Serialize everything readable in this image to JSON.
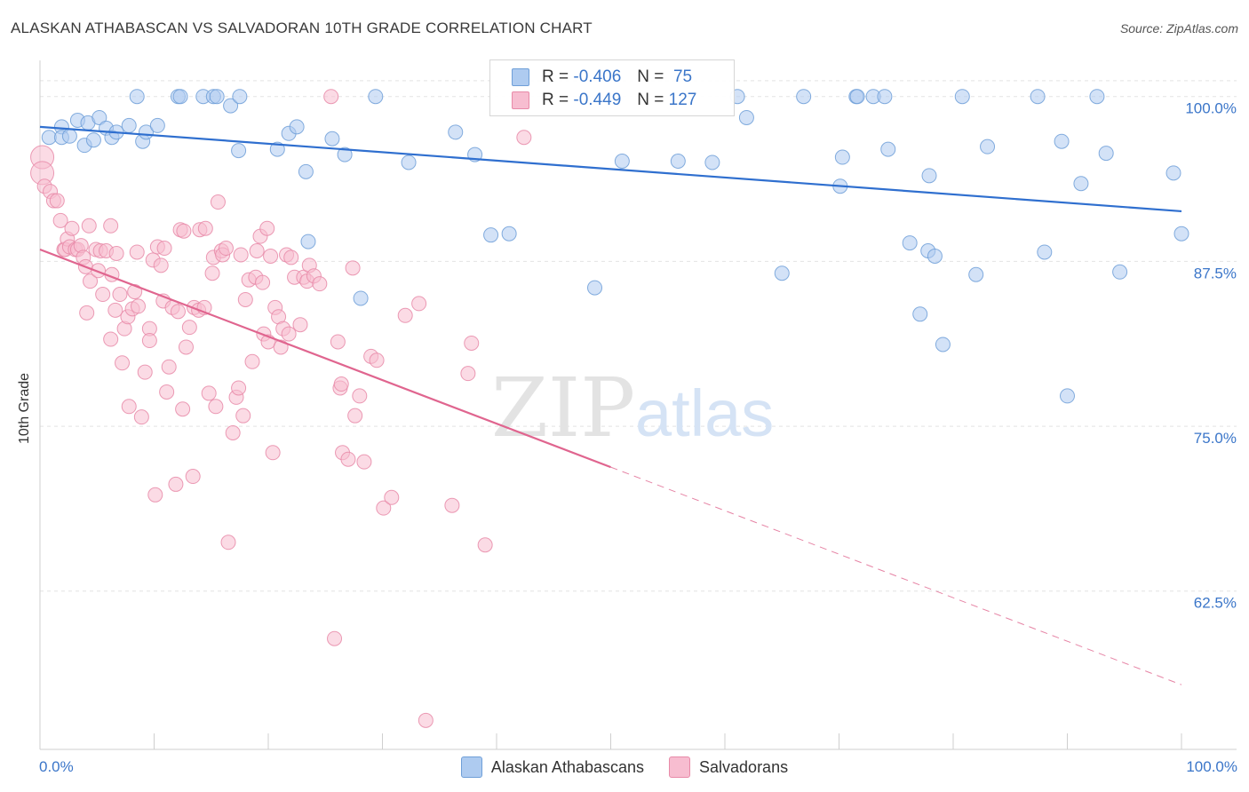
{
  "header": {
    "title": "ALASKAN ATHABASCAN VS SALVADORAN 10TH GRADE CORRELATION CHART",
    "source": "Source: ZipAtlas.com"
  },
  "watermark": {
    "zip": "ZIP",
    "atlas": "atlas"
  },
  "legend_stats": {
    "r_label": "R =",
    "n_label": "N =",
    "rows": [
      {
        "r": "-0.406",
        "n": "75",
        "color": "#aecbf0",
        "border": "#6f9fd8"
      },
      {
        "r": "-0.449",
        "n": "127",
        "color": "#f7bdd0",
        "border": "#e88aa8"
      }
    ]
  },
  "chart_data": {
    "type": "scatter",
    "title": "ALASKAN ATHABASCAN VS SALVADORAN 10TH GRADE CORRELATION CHART",
    "xlabel": "",
    "ylabel": "10th Grade",
    "xlim": [
      0,
      100
    ],
    "ylim": [
      50.5,
      102
    ],
    "x_tick_labels": [
      "0.0%",
      "100.0%"
    ],
    "y_ticks": [
      62.5,
      75.0,
      87.5,
      100.0
    ],
    "y_tick_labels": [
      "62.5%",
      "75.0%",
      "87.5%",
      "100.0%"
    ],
    "grid": true,
    "legend_position": "bottom",
    "series": [
      {
        "name": "Alaskan Athabascans",
        "color": "#aecbf0",
        "edge": "#6f9fd8",
        "line_color": "#2f6fcf",
        "trend": [
          [
            0,
            97.7
          ],
          [
            100,
            91.3
          ]
        ],
        "trend_solid_until": 100,
        "points": [
          [
            0.8,
            96.9
          ],
          [
            1.9,
            97.7
          ],
          [
            1.9,
            96.9
          ],
          [
            2.6,
            97.0
          ],
          [
            3.3,
            98.2
          ],
          [
            3.9,
            96.3
          ],
          [
            4.2,
            98.0
          ],
          [
            4.7,
            96.7
          ],
          [
            5.2,
            98.4
          ],
          [
            5.8,
            97.6
          ],
          [
            6.3,
            96.9
          ],
          [
            6.7,
            97.3
          ],
          [
            7.8,
            97.8
          ],
          [
            8.5,
            100.0
          ],
          [
            9.0,
            96.6
          ],
          [
            9.3,
            97.3
          ],
          [
            10.3,
            97.8
          ],
          [
            12.1,
            100.0
          ],
          [
            12.3,
            100.0
          ],
          [
            14.3,
            100.0
          ],
          [
            15.2,
            100.0
          ],
          [
            15.5,
            100.0
          ],
          [
            16.7,
            99.3
          ],
          [
            17.5,
            100.0
          ],
          [
            17.4,
            95.9
          ],
          [
            20.8,
            96.0
          ],
          [
            21.8,
            97.2
          ],
          [
            22.5,
            97.7
          ],
          [
            23.3,
            94.3
          ],
          [
            23.5,
            89.0
          ],
          [
            25.6,
            96.8
          ],
          [
            26.7,
            95.6
          ],
          [
            28.1,
            84.7
          ],
          [
            29.4,
            100.0
          ],
          [
            32.3,
            95.0
          ],
          [
            36.4,
            97.3
          ],
          [
            38.1,
            95.6
          ],
          [
            39.5,
            89.5
          ],
          [
            41.1,
            89.6
          ],
          [
            48.6,
            85.5
          ],
          [
            51.0,
            95.1
          ],
          [
            55.9,
            95.1
          ],
          [
            58.9,
            95.0
          ],
          [
            61.1,
            100.0
          ],
          [
            61.9,
            98.4
          ],
          [
            65.0,
            86.6
          ],
          [
            66.9,
            100.0
          ],
          [
            70.1,
            93.2
          ],
          [
            70.3,
            95.4
          ],
          [
            71.5,
            100.0
          ],
          [
            71.6,
            100.0
          ],
          [
            73.0,
            100.0
          ],
          [
            74.0,
            100.0
          ],
          [
            74.3,
            96.0
          ],
          [
            76.2,
            88.9
          ],
          [
            77.1,
            83.5
          ],
          [
            77.9,
            94.0
          ],
          [
            77.8,
            88.3
          ],
          [
            78.4,
            87.9
          ],
          [
            79.1,
            81.2
          ],
          [
            80.8,
            100.0
          ],
          [
            82.0,
            86.5
          ],
          [
            83.0,
            96.2
          ],
          [
            87.4,
            100.0
          ],
          [
            88.0,
            88.2
          ],
          [
            89.5,
            96.6
          ],
          [
            90.0,
            77.3
          ],
          [
            91.2,
            93.4
          ],
          [
            92.6,
            100.0
          ],
          [
            93.4,
            95.7
          ],
          [
            94.6,
            86.7
          ],
          [
            99.3,
            94.2
          ],
          [
            100.0,
            89.6
          ]
        ]
      },
      {
        "name": "Salvadorans",
        "color": "#f7bdd0",
        "edge": "#e88aa8",
        "line_color": "#e0658f",
        "trend": [
          [
            0,
            88.4
          ],
          [
            100,
            55.4
          ]
        ],
        "trend_solid_until": 50,
        "points": [
          [
            0.2,
            95.4
          ],
          [
            0.2,
            94.2
          ],
          [
            0.4,
            93.2
          ],
          [
            0.9,
            92.8
          ],
          [
            1.2,
            92.1
          ],
          [
            1.5,
            92.1
          ],
          [
            1.8,
            90.6
          ],
          [
            2.1,
            88.4
          ],
          [
            2.2,
            88.4
          ],
          [
            2.4,
            89.2
          ],
          [
            2.6,
            88.6
          ],
          [
            2.8,
            90.0
          ],
          [
            3.1,
            88.4
          ],
          [
            3.3,
            88.4
          ],
          [
            3.6,
            88.7
          ],
          [
            3.8,
            87.8
          ],
          [
            4.0,
            87.1
          ],
          [
            4.1,
            83.6
          ],
          [
            4.3,
            90.2
          ],
          [
            4.4,
            86.0
          ],
          [
            4.9,
            88.4
          ],
          [
            5.1,
            86.8
          ],
          [
            5.3,
            88.3
          ],
          [
            5.5,
            85.0
          ],
          [
            5.8,
            88.3
          ],
          [
            6.2,
            90.2
          ],
          [
            6.2,
            81.6
          ],
          [
            6.3,
            86.5
          ],
          [
            6.6,
            83.8
          ],
          [
            6.7,
            88.1
          ],
          [
            7.0,
            85.0
          ],
          [
            7.2,
            79.8
          ],
          [
            7.4,
            82.4
          ],
          [
            7.7,
            83.3
          ],
          [
            7.8,
            76.5
          ],
          [
            8.1,
            83.9
          ],
          [
            8.3,
            85.2
          ],
          [
            8.5,
            88.2
          ],
          [
            8.6,
            84.1
          ],
          [
            8.9,
            75.7
          ],
          [
            9.2,
            79.1
          ],
          [
            9.6,
            82.4
          ],
          [
            9.6,
            81.5
          ],
          [
            9.9,
            87.6
          ],
          [
            10.1,
            69.8
          ],
          [
            10.3,
            88.6
          ],
          [
            10.6,
            87.2
          ],
          [
            10.8,
            84.5
          ],
          [
            10.9,
            88.5
          ],
          [
            11.1,
            77.6
          ],
          [
            11.3,
            79.5
          ],
          [
            11.6,
            84.0
          ],
          [
            11.9,
            70.6
          ],
          [
            12.1,
            83.7
          ],
          [
            12.3,
            89.9
          ],
          [
            12.5,
            76.3
          ],
          [
            12.6,
            89.8
          ],
          [
            12.8,
            81.0
          ],
          [
            13.1,
            82.5
          ],
          [
            13.4,
            71.2
          ],
          [
            13.5,
            84.0
          ],
          [
            13.9,
            83.8
          ],
          [
            14.0,
            89.9
          ],
          [
            14.4,
            84.0
          ],
          [
            14.5,
            90.0
          ],
          [
            14.8,
            77.5
          ],
          [
            15.1,
            86.6
          ],
          [
            15.2,
            87.8
          ],
          [
            15.4,
            76.5
          ],
          [
            15.6,
            92.0
          ],
          [
            15.9,
            88.3
          ],
          [
            16.0,
            88.0
          ],
          [
            16.3,
            88.5
          ],
          [
            16.5,
            66.2
          ],
          [
            16.9,
            74.5
          ],
          [
            17.2,
            77.2
          ],
          [
            17.4,
            77.9
          ],
          [
            17.6,
            88.0
          ],
          [
            17.8,
            75.8
          ],
          [
            18.0,
            84.6
          ],
          [
            18.3,
            86.1
          ],
          [
            18.6,
            79.9
          ],
          [
            18.9,
            86.3
          ],
          [
            19.0,
            88.3
          ],
          [
            19.3,
            89.4
          ],
          [
            19.5,
            85.9
          ],
          [
            19.6,
            82.0
          ],
          [
            19.9,
            90.0
          ],
          [
            20.0,
            81.4
          ],
          [
            20.2,
            87.9
          ],
          [
            20.4,
            73.0
          ],
          [
            20.6,
            84.0
          ],
          [
            20.9,
            83.3
          ],
          [
            21.1,
            81.0
          ],
          [
            21.3,
            82.4
          ],
          [
            21.6,
            88.0
          ],
          [
            21.8,
            82.0
          ],
          [
            22.0,
            87.8
          ],
          [
            22.3,
            86.3
          ],
          [
            22.8,
            82.7
          ],
          [
            23.1,
            86.3
          ],
          [
            23.4,
            86.0
          ],
          [
            23.6,
            87.2
          ],
          [
            24.0,
            86.4
          ],
          [
            24.5,
            85.8
          ],
          [
            25.5,
            100.0
          ],
          [
            25.8,
            58.9
          ],
          [
            26.1,
            81.4
          ],
          [
            26.3,
            77.9
          ],
          [
            26.4,
            78.2
          ],
          [
            26.5,
            73.0
          ],
          [
            27.0,
            72.5
          ],
          [
            27.4,
            87.0
          ],
          [
            27.6,
            75.8
          ],
          [
            28.0,
            77.3
          ],
          [
            28.4,
            72.3
          ],
          [
            29.0,
            80.3
          ],
          [
            29.5,
            80.0
          ],
          [
            30.1,
            68.8
          ],
          [
            30.8,
            69.6
          ],
          [
            32.0,
            83.4
          ],
          [
            33.2,
            84.3
          ],
          [
            33.8,
            52.7
          ],
          [
            36.1,
            69.0
          ],
          [
            37.5,
            79.0
          ],
          [
            37.8,
            81.3
          ],
          [
            39.0,
            66.0
          ],
          [
            42.4,
            96.9
          ]
        ]
      }
    ]
  }
}
